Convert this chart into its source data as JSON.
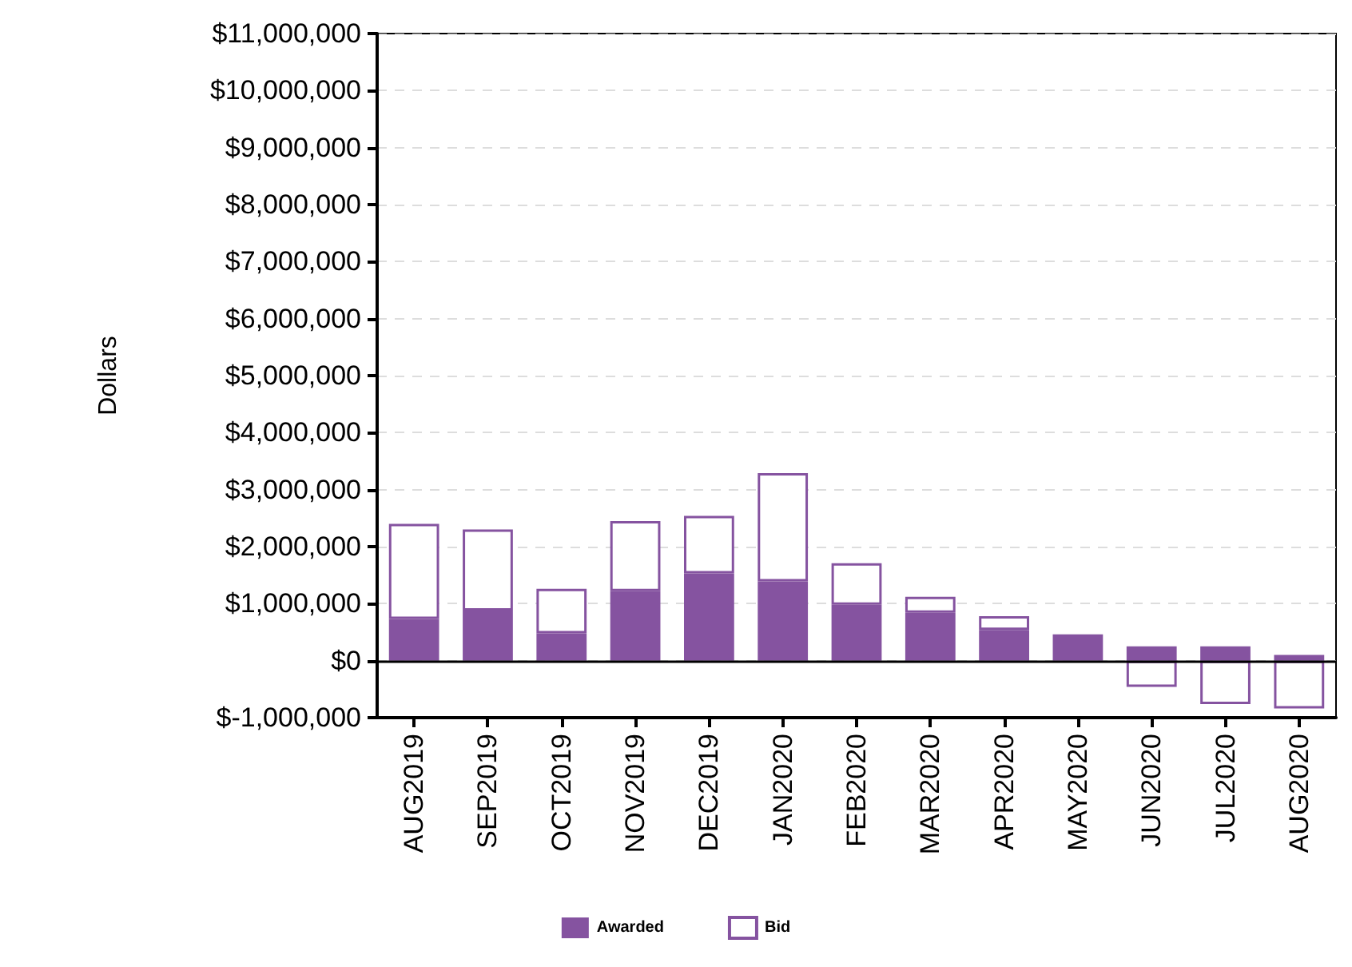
{
  "chart_data": {
    "type": "bar",
    "stacked": true,
    "ylabel": "Dollars",
    "categories": [
      "AUG2019",
      "SEP2019",
      "OCT2019",
      "NOV2019",
      "DEC2019",
      "JAN2020",
      "FEB2020",
      "MAR2020",
      "APR2020",
      "MAY2020",
      "JUN2020",
      "JUL2020",
      "AUG2020"
    ],
    "series": [
      {
        "name": "Awarded",
        "color": "#8553a0",
        "values": [
          730000,
          880000,
          480000,
          1220000,
          1530000,
          1390000,
          980000,
          840000,
          540000,
          460000,
          250000,
          250000,
          100000
        ]
      },
      {
        "name": "Bid",
        "color": "#ffffff",
        "values": [
          1670000,
          1420000,
          780000,
          1230000,
          1010000,
          1900000,
          730000,
          280000,
          240000,
          null,
          -460000,
          -760000,
          -840000
        ]
      }
    ],
    "ylim": [
      -1000000,
      11000000
    ],
    "yticks": [
      {
        "value": -1000000,
        "label": "$-1,000,000"
      },
      {
        "value": 0,
        "label": "$0"
      },
      {
        "value": 1000000,
        "label": "$1,000,000"
      },
      {
        "value": 2000000,
        "label": "$2,000,000"
      },
      {
        "value": 3000000,
        "label": "$3,000,000"
      },
      {
        "value": 4000000,
        "label": "$4,000,000"
      },
      {
        "value": 5000000,
        "label": "$5,000,000"
      },
      {
        "value": 6000000,
        "label": "$6,000,000"
      },
      {
        "value": 7000000,
        "label": "$7,000,000"
      },
      {
        "value": 8000000,
        "label": "$8,000,000"
      },
      {
        "value": 9000000,
        "label": "$9,000,000"
      },
      {
        "value": 10000000,
        "label": "$10,000,000"
      },
      {
        "value": 11000000,
        "label": "$11,000,000"
      }
    ],
    "ref_lines": [
      {
        "axis": "y",
        "value": 0,
        "color": "#000000"
      }
    ],
    "grid": "y",
    "legend": "bottom"
  }
}
